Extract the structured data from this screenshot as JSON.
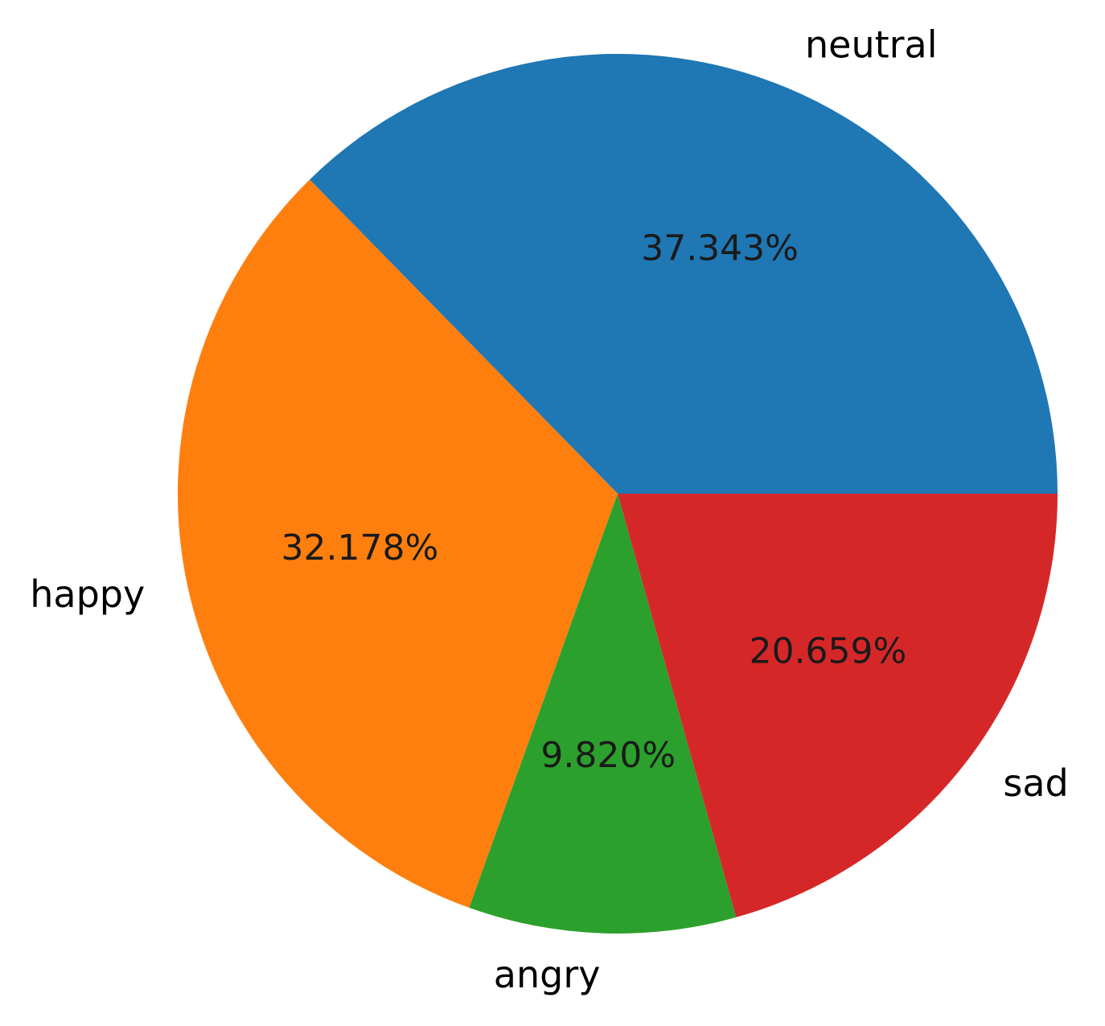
{
  "chart_data": {
    "type": "pie",
    "categories": [
      "neutral",
      "happy",
      "angry",
      "sad"
    ],
    "values": [
      37.343,
      32.178,
      9.82,
      20.659
    ],
    "value_labels": [
      "37.343%",
      "32.178%",
      "9.820%",
      "20.659%"
    ],
    "colors": [
      "#1f77b4",
      "#ff7f0e",
      "#2ca02c",
      "#d62728"
    ]
  }
}
